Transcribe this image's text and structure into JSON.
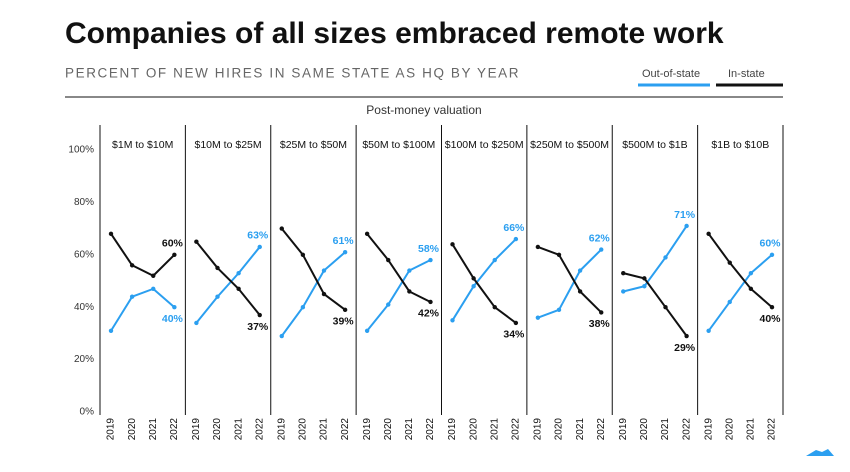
{
  "title": "Companies of all sizes embraced remote work",
  "subtitle": "PERCENT OF NEW HIRES IN SAME STATE AS HQ BY YEAR",
  "facet_label": "Post-money valuation",
  "chart_data": [
    {
      "type": "line",
      "title": "$1M to $10M",
      "categories": [
        "2019",
        "2020",
        "2021",
        "2022"
      ],
      "ylim": [
        0,
        100
      ],
      "yticks": [
        {
          "value": 0,
          "label": "0%"
        },
        {
          "value": 20,
          "label": "20%"
        },
        {
          "value": 40,
          "label": "40%"
        },
        {
          "value": 60,
          "label": "60%"
        },
        {
          "value": 80,
          "label": "80%"
        },
        {
          "value": 100,
          "label": "100%"
        }
      ],
      "series": [
        {
          "name": "Out-of-state",
          "color": "#2b9ff0",
          "values": [
            31,
            44,
            47,
            40
          ],
          "value_labels": [
            null,
            null,
            null,
            "40%"
          ]
        },
        {
          "name": "In-state",
          "color": "#111111",
          "values": [
            68,
            56,
            52,
            60
          ],
          "value_labels": [
            null,
            null,
            null,
            "60%"
          ]
        }
      ]
    },
    {
      "type": "line",
      "title": "$10M to $25M",
      "categories": [
        "2019",
        "2020",
        "2021",
        "2022"
      ],
      "ylim": [
        0,
        100
      ],
      "series": [
        {
          "name": "Out-of-state",
          "color": "#2b9ff0",
          "values": [
            34,
            44,
            53,
            63
          ],
          "value_labels": [
            null,
            null,
            null,
            "63%"
          ]
        },
        {
          "name": "In-state",
          "color": "#111111",
          "values": [
            65,
            55,
            47,
            37
          ],
          "value_labels": [
            null,
            null,
            null,
            "37%"
          ]
        }
      ]
    },
    {
      "type": "line",
      "title": "$25M to $50M",
      "categories": [
        "2019",
        "2020",
        "2021",
        "2022"
      ],
      "ylim": [
        0,
        100
      ],
      "series": [
        {
          "name": "Out-of-state",
          "color": "#2b9ff0",
          "values": [
            29,
            40,
            54,
            61
          ],
          "value_labels": [
            null,
            null,
            null,
            "61%"
          ]
        },
        {
          "name": "In-state",
          "color": "#111111",
          "values": [
            70,
            60,
            45,
            39
          ],
          "value_labels": [
            null,
            null,
            null,
            "39%"
          ]
        }
      ]
    },
    {
      "type": "line",
      "title": "$50M to $100M",
      "categories": [
        "2019",
        "2020",
        "2021",
        "2022"
      ],
      "ylim": [
        0,
        100
      ],
      "series": [
        {
          "name": "Out-of-state",
          "color": "#2b9ff0",
          "values": [
            31,
            41,
            54,
            58
          ],
          "value_labels": [
            null,
            null,
            null,
            "58%"
          ]
        },
        {
          "name": "In-state",
          "color": "#111111",
          "values": [
            68,
            58,
            46,
            42
          ],
          "value_labels": [
            null,
            null,
            null,
            "42%"
          ]
        }
      ]
    },
    {
      "type": "line",
      "title": "$100M to $250M",
      "categories": [
        "2019",
        "2020",
        "2021",
        "2022"
      ],
      "ylim": [
        0,
        100
      ],
      "series": [
        {
          "name": "Out-of-state",
          "color": "#2b9ff0",
          "values": [
            35,
            48,
            58,
            66
          ],
          "value_labels": [
            null,
            null,
            null,
            "66%"
          ]
        },
        {
          "name": "In-state",
          "color": "#111111",
          "values": [
            64,
            51,
            40,
            34
          ],
          "value_labels": [
            null,
            null,
            null,
            "34%"
          ]
        }
      ]
    },
    {
      "type": "line",
      "title": "$250M to $500M",
      "categories": [
        "2019",
        "2020",
        "2021",
        "2022"
      ],
      "ylim": [
        0,
        100
      ],
      "series": [
        {
          "name": "Out-of-state",
          "color": "#2b9ff0",
          "values": [
            36,
            39,
            54,
            62
          ],
          "value_labels": [
            null,
            null,
            null,
            "62%"
          ]
        },
        {
          "name": "In-state",
          "color": "#111111",
          "values": [
            63,
            60,
            46,
            38
          ],
          "value_labels": [
            null,
            null,
            null,
            "38%"
          ]
        }
      ]
    },
    {
      "type": "line",
      "title": "$500M to $1B",
      "categories": [
        "2019",
        "2020",
        "2021",
        "2022"
      ],
      "ylim": [
        0,
        100
      ],
      "series": [
        {
          "name": "Out-of-state",
          "color": "#2b9ff0",
          "values": [
            46,
            48,
            59,
            71
          ],
          "value_labels": [
            null,
            null,
            null,
            "71%"
          ]
        },
        {
          "name": "In-state",
          "color": "#111111",
          "values": [
            53,
            51,
            40,
            29
          ],
          "value_labels": [
            null,
            null,
            null,
            "29%"
          ]
        }
      ]
    },
    {
      "type": "line",
      "title": "$1B to $10B",
      "categories": [
        "2019",
        "2020",
        "2021",
        "2022"
      ],
      "ylim": [
        0,
        100
      ],
      "series": [
        {
          "name": "Out-of-state",
          "color": "#2b9ff0",
          "values": [
            31,
            42,
            53,
            60
          ],
          "value_labels": [
            null,
            null,
            null,
            "60%"
          ]
        },
        {
          "name": "In-state",
          "color": "#111111",
          "values": [
            68,
            57,
            47,
            40
          ],
          "value_labels": [
            null,
            null,
            null,
            "40%"
          ]
        }
      ]
    }
  ]
}
